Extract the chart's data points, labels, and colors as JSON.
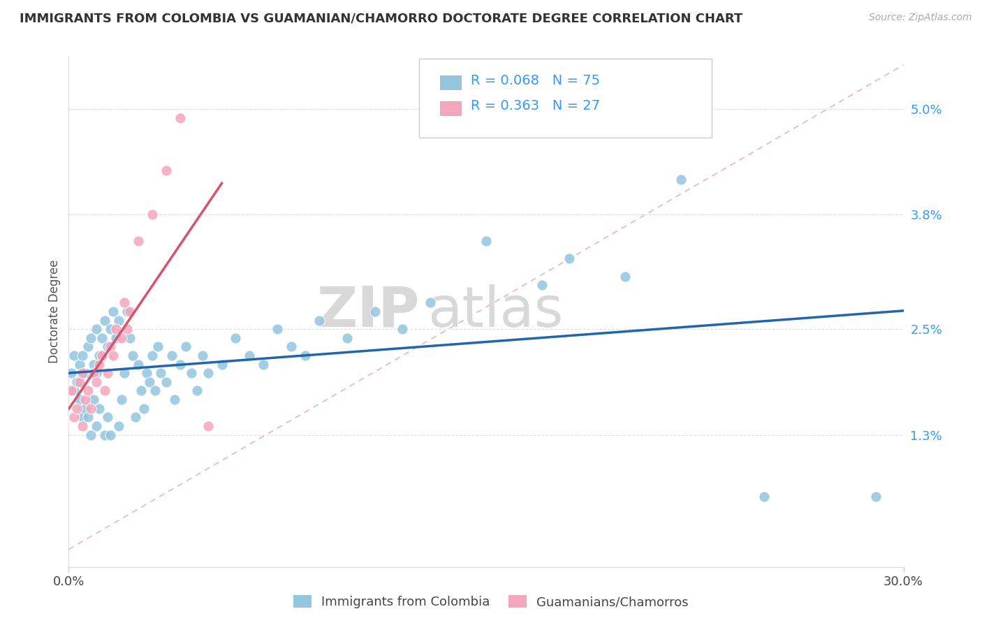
{
  "title": "IMMIGRANTS FROM COLOMBIA VS GUAMANIAN/CHAMORRO DOCTORATE DEGREE CORRELATION CHART",
  "source": "Source: ZipAtlas.com",
  "xlabel_colombia": "Immigrants from Colombia",
  "xlabel_guamanian": "Guamanians/Chamorros",
  "ylabel": "Doctorate Degree",
  "xlim": [
    0.0,
    0.3
  ],
  "ylim": [
    -0.002,
    0.056
  ],
  "xtick_labels": [
    "0.0%",
    "30.0%"
  ],
  "ytick_values": [
    0.013,
    0.025,
    0.038,
    0.05
  ],
  "ytick_labels": [
    "1.3%",
    "2.5%",
    "3.8%",
    "5.0%"
  ],
  "color_blue": "#92c5de",
  "color_pink": "#f4a6bb",
  "color_blue_dark": "#2166ac",
  "color_pink_dark": "#d6536d",
  "color_blue_text": "#3399ff",
  "legend_blue_R": "0.068",
  "legend_blue_N": "75",
  "legend_pink_R": "0.363",
  "legend_pink_N": "27",
  "watermark_zip": "ZIP",
  "watermark_atlas": "atlas",
  "background_color": "#ffffff",
  "grid_color": "#dddddd",
  "diag_color": "#f4a6bb",
  "colombia_x": [
    0.001,
    0.002,
    0.002,
    0.003,
    0.004,
    0.004,
    0.005,
    0.005,
    0.006,
    0.006,
    0.007,
    0.007,
    0.008,
    0.008,
    0.009,
    0.009,
    0.01,
    0.01,
    0.01,
    0.011,
    0.011,
    0.012,
    0.013,
    0.013,
    0.014,
    0.014,
    0.015,
    0.015,
    0.016,
    0.017,
    0.018,
    0.018,
    0.019,
    0.02,
    0.021,
    0.022,
    0.023,
    0.024,
    0.025,
    0.026,
    0.027,
    0.028,
    0.029,
    0.03,
    0.031,
    0.032,
    0.033,
    0.035,
    0.037,
    0.038,
    0.04,
    0.042,
    0.044,
    0.046,
    0.048,
    0.05,
    0.055,
    0.06,
    0.065,
    0.07,
    0.075,
    0.08,
    0.085,
    0.09,
    0.1,
    0.11,
    0.12,
    0.13,
    0.15,
    0.17,
    0.18,
    0.2,
    0.22,
    0.25,
    0.29
  ],
  "colombia_y": [
    0.02,
    0.018,
    0.022,
    0.019,
    0.021,
    0.017,
    0.022,
    0.015,
    0.02,
    0.016,
    0.023,
    0.015,
    0.024,
    0.013,
    0.021,
    0.017,
    0.025,
    0.014,
    0.02,
    0.022,
    0.016,
    0.024,
    0.026,
    0.013,
    0.023,
    0.015,
    0.025,
    0.013,
    0.027,
    0.024,
    0.026,
    0.014,
    0.017,
    0.02,
    0.027,
    0.024,
    0.022,
    0.015,
    0.021,
    0.018,
    0.016,
    0.02,
    0.019,
    0.022,
    0.018,
    0.023,
    0.02,
    0.019,
    0.022,
    0.017,
    0.021,
    0.023,
    0.02,
    0.018,
    0.022,
    0.02,
    0.021,
    0.024,
    0.022,
    0.021,
    0.025,
    0.023,
    0.022,
    0.026,
    0.024,
    0.027,
    0.025,
    0.028,
    0.035,
    0.03,
    0.033,
    0.031,
    0.042,
    0.006,
    0.006
  ],
  "guamanian_x": [
    0.001,
    0.002,
    0.003,
    0.004,
    0.005,
    0.005,
    0.006,
    0.007,
    0.008,
    0.009,
    0.01,
    0.011,
    0.012,
    0.013,
    0.014,
    0.015,
    0.016,
    0.017,
    0.019,
    0.02,
    0.021,
    0.022,
    0.025,
    0.03,
    0.035,
    0.04,
    0.05
  ],
  "guamanian_y": [
    0.018,
    0.015,
    0.016,
    0.019,
    0.014,
    0.02,
    0.017,
    0.018,
    0.016,
    0.02,
    0.019,
    0.021,
    0.022,
    0.018,
    0.02,
    0.023,
    0.022,
    0.025,
    0.024,
    0.028,
    0.025,
    0.027,
    0.035,
    0.038,
    0.043,
    0.049,
    0.014
  ]
}
